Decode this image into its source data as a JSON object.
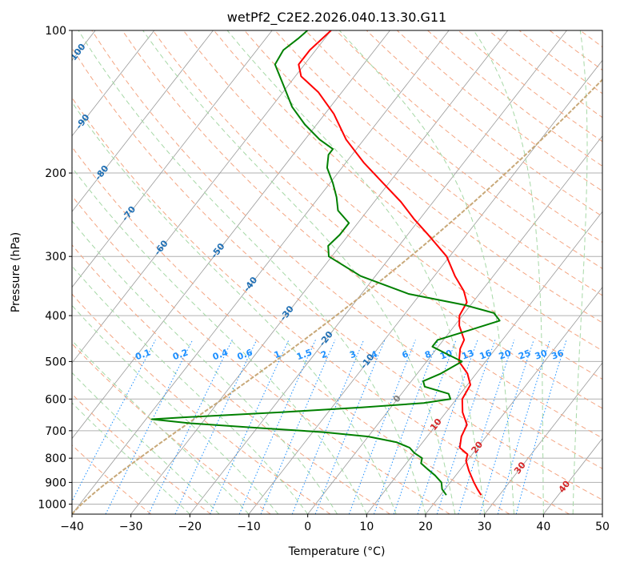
{
  "chart_data": {
    "type": "line",
    "subtype": "skew-T log-p diagram",
    "title": "wetPf2_C2E2.2026.040.13.30.G11",
    "xlabel": "Temperature (°C)",
    "ylabel": "Pressure (hPa)",
    "xlim": [
      -40,
      50
    ],
    "ylim": [
      1050,
      100
    ],
    "y_scale": "log",
    "x_ticks": [
      "−40",
      "−30",
      "−20",
      "−10",
      "0",
      "10",
      "20",
      "30",
      "40",
      "50"
    ],
    "y_ticks": [
      {
        "p": 100,
        "label": "100"
      },
      {
        "p": 200,
        "label": "200"
      },
      {
        "p": 300,
        "label": "300"
      },
      {
        "p": 400,
        "label": "400"
      },
      {
        "p": 500,
        "label": "500"
      },
      {
        "p": 600,
        "label": "600"
      },
      {
        "p": 700,
        "label": "700"
      },
      {
        "p": 800,
        "label": "800"
      },
      {
        "p": 900,
        "label": "900"
      },
      {
        "p": 1000,
        "label": "1000"
      }
    ],
    "grid": true,
    "series": [
      {
        "kind": "temperature",
        "color": "#ff0000",
        "points": [
          {
            "p": 957,
            "t": 26.9
          },
          {
            "p": 930,
            "t": 25.5
          },
          {
            "p": 900,
            "t": 24.0
          },
          {
            "p": 850,
            "t": 21.6
          },
          {
            "p": 810,
            "t": 19.8
          },
          {
            "p": 785,
            "t": 19.2
          },
          {
            "p": 760,
            "t": 17.0
          },
          {
            "p": 720,
            "t": 15.8
          },
          {
            "p": 680,
            "t": 15.2
          },
          {
            "p": 640,
            "t": 12.8
          },
          {
            "p": 600,
            "t": 11.0
          },
          {
            "p": 560,
            "t": 10.5
          },
          {
            "p": 530,
            "t": 8.5
          },
          {
            "p": 500,
            "t": 5.5
          },
          {
            "p": 470,
            "t": 4.0
          },
          {
            "p": 450,
            "t": 3.5
          },
          {
            "p": 420,
            "t": 0.8
          },
          {
            "p": 400,
            "t": -0.5
          },
          {
            "p": 375,
            "t": -1.0
          },
          {
            "p": 355,
            "t": -3.0
          },
          {
            "p": 330,
            "t": -6.5
          },
          {
            "p": 300,
            "t": -10.5
          },
          {
            "p": 270,
            "t": -16.5
          },
          {
            "p": 250,
            "t": -21.0
          },
          {
            "p": 230,
            "t": -25.5
          },
          {
            "p": 210,
            "t": -31.0
          },
          {
            "p": 190,
            "t": -37.0
          },
          {
            "p": 170,
            "t": -43.0
          },
          {
            "p": 150,
            "t": -48.5
          },
          {
            "p": 135,
            "t": -54.0
          },
          {
            "p": 125,
            "t": -59.0
          },
          {
            "p": 118,
            "t": -61.0
          },
          {
            "p": 110,
            "t": -61.0
          },
          {
            "p": 105,
            "t": -60.5
          },
          {
            "p": 100,
            "t": -60.0
          }
        ]
      },
      {
        "kind": "dewpoint",
        "color": "#008000",
        "points": [
          {
            "p": 957,
            "t": 21.0
          },
          {
            "p": 930,
            "t": 19.5
          },
          {
            "p": 900,
            "t": 18.5
          },
          {
            "p": 870,
            "t": 16.5
          },
          {
            "p": 845,
            "t": 14.5
          },
          {
            "p": 820,
            "t": 12.5
          },
          {
            "p": 800,
            "t": 12.0
          },
          {
            "p": 780,
            "t": 10.0
          },
          {
            "p": 760,
            "t": 8.5
          },
          {
            "p": 740,
            "t": 5.5
          },
          {
            "p": 720,
            "t": 0.0
          },
          {
            "p": 705,
            "t": -8.0
          },
          {
            "p": 690,
            "t": -20.0
          },
          {
            "p": 675,
            "t": -32.0
          },
          {
            "p": 662,
            "t": -39.0
          },
          {
            "p": 655,
            "t": -33.0
          },
          {
            "p": 640,
            "t": -18.0
          },
          {
            "p": 625,
            "t": -5.0
          },
          {
            "p": 612,
            "t": 5.0
          },
          {
            "p": 600,
            "t": 9.0
          },
          {
            "p": 585,
            "t": 8.0
          },
          {
            "p": 565,
            "t": 3.0
          },
          {
            "p": 550,
            "t": 2.0
          },
          {
            "p": 530,
            "t": 4.0
          },
          {
            "p": 500,
            "t": 6.0
          },
          {
            "p": 480,
            "t": 2.0
          },
          {
            "p": 465,
            "t": -1.0
          },
          {
            "p": 450,
            "t": -1.0
          },
          {
            "p": 430,
            "t": 3.0
          },
          {
            "p": 410,
            "t": 7.0
          },
          {
            "p": 395,
            "t": 5.0
          },
          {
            "p": 380,
            "t": -1.0
          },
          {
            "p": 360,
            "t": -12.0
          },
          {
            "p": 330,
            "t": -22.5
          },
          {
            "p": 300,
            "t": -30.5
          },
          {
            "p": 285,
            "t": -32.0
          },
          {
            "p": 270,
            "t": -31.5
          },
          {
            "p": 255,
            "t": -31.5
          },
          {
            "p": 240,
            "t": -35.0
          },
          {
            "p": 225,
            "t": -37.0
          },
          {
            "p": 210,
            "t": -39.5
          },
          {
            "p": 195,
            "t": -42.5
          },
          {
            "p": 183,
            "t": -44.0
          },
          {
            "p": 178,
            "t": -44.0
          },
          {
            "p": 170,
            "t": -47.5
          },
          {
            "p": 158,
            "t": -52.0
          },
          {
            "p": 145,
            "t": -56.5
          },
          {
            "p": 130,
            "t": -61.0
          },
          {
            "p": 118,
            "t": -65.0
          },
          {
            "p": 110,
            "t": -65.5
          },
          {
            "p": 104,
            "t": -64.5
          },
          {
            "p": 100,
            "t": -64.0
          }
        ]
      }
    ],
    "isotherm_labels": [
      "-100",
      "-90",
      "-80",
      "-70",
      "-60",
      "-50",
      "-40",
      "-30",
      "-20",
      "-10",
      "0",
      "10",
      "20",
      "30",
      "40"
    ],
    "isotherm_label_values": [
      -100,
      -90,
      -80,
      -70,
      -60,
      -50,
      -40,
      -30,
      -20,
      -10,
      0,
      10,
      20,
      30,
      40
    ],
    "mixing_ratio_labels": [
      "0.1",
      "0.2",
      "0.4",
      "0.6",
      "1",
      "1.5",
      "2",
      "3",
      "4",
      "6",
      "8",
      "10",
      "13",
      "16",
      "20",
      "25",
      "30",
      "36"
    ],
    "mixing_ratio_values": [
      0.1,
      0.2,
      0.4,
      0.6,
      1,
      1.5,
      2,
      3,
      4,
      6,
      8,
      10,
      13,
      16,
      20,
      25,
      30,
      36
    ],
    "colors": {
      "temperature": "#ff0000",
      "dewpoint": "#008000",
      "dry_adiabat": "#f4a582",
      "moist_adiabat": "#a6d8a6",
      "mixing_ratio": "#1e90ff",
      "cold_isotherm_label": "#1f6fb4",
      "zero_isotherm_label": "#808080",
      "warm_isotherm_label": "#d62728",
      "mixing_ratio_label": "#1e90ff",
      "lcl_curve": "#c8a878",
      "isotherm": "#999999",
      "isobar": "#b0b0b0"
    }
  }
}
